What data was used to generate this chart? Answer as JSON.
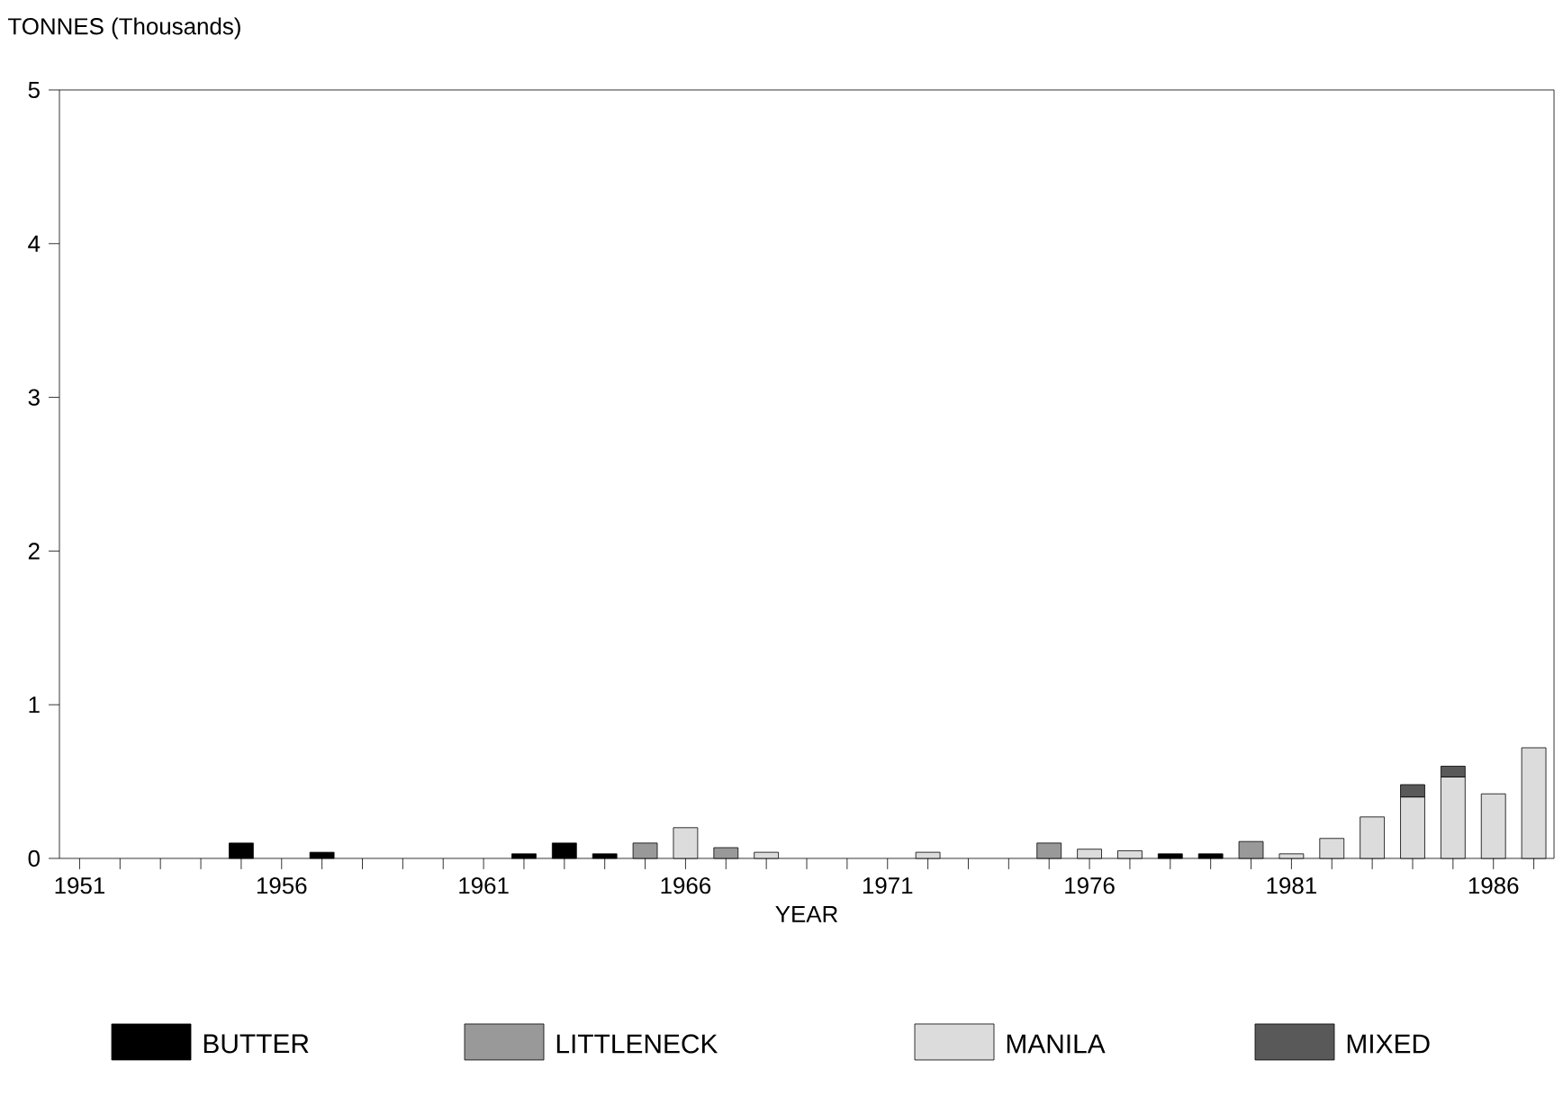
{
  "chart_data": {
    "type": "bar",
    "stacked": true,
    "ylabel": "TONNES (Thousands)",
    "xlabel": "YEAR",
    "x": [
      1955,
      1957,
      1962,
      1963,
      1964,
      1965,
      1966,
      1967,
      1968,
      1972,
      1975,
      1976,
      1977,
      1978,
      1979,
      1980,
      1981,
      1982,
      1983,
      1984,
      1985,
      1986,
      1987
    ],
    "series": [
      {
        "name": "BUTTER",
        "color": "#000000",
        "values": [
          0.1,
          0.04,
          0.03,
          0.1,
          0.03,
          null,
          null,
          null,
          null,
          null,
          null,
          null,
          null,
          0.03,
          0.03,
          null,
          null,
          null,
          null,
          null,
          null,
          null,
          null
        ]
      },
      {
        "name": "LITTLENECK",
        "color": "#999999",
        "values": [
          null,
          null,
          null,
          null,
          null,
          0.1,
          null,
          0.07,
          null,
          null,
          0.1,
          null,
          null,
          null,
          null,
          0.11,
          null,
          null,
          null,
          null,
          null,
          null,
          null
        ]
      },
      {
        "name": "MANILA",
        "color": "#dcdcdc",
        "values": [
          null,
          null,
          null,
          null,
          null,
          null,
          0.2,
          null,
          0.04,
          0.04,
          null,
          0.06,
          0.05,
          null,
          null,
          null,
          0.03,
          0.13,
          0.27,
          0.4,
          0.53,
          0.42,
          0.72
        ]
      },
      {
        "name": "MIXED",
        "color": "#595959",
        "values": [
          null,
          null,
          null,
          null,
          null,
          null,
          null,
          null,
          null,
          null,
          null,
          null,
          null,
          null,
          null,
          null,
          null,
          null,
          null,
          0.08,
          0.07,
          null,
          null
        ]
      }
    ],
    "xlim": [
      1950.5,
      1987.5
    ],
    "ylim": [
      0,
      5
    ],
    "xticks": [
      1951,
      {
        "value": 1952,
        "label": null
      },
      {
        "value": 1953,
        "label": null
      },
      {
        "value": 1954,
        "label": null
      },
      {
        "value": 1955,
        "label": null
      },
      1956,
      {
        "value": 1957,
        "label": null
      },
      {
        "value": 1958,
        "label": null
      },
      {
        "value": 1959,
        "label": null
      },
      {
        "value": 1960,
        "label": null
      },
      1961,
      {
        "value": 1962,
        "label": null
      },
      {
        "value": 1963,
        "label": null
      },
      {
        "value": 1964,
        "label": null
      },
      {
        "value": 1965,
        "label": null
      },
      1966,
      {
        "value": 1967,
        "label": null
      },
      {
        "value": 1968,
        "label": null
      },
      {
        "value": 1969,
        "label": null
      },
      {
        "value": 1970,
        "label": null
      },
      1971,
      {
        "value": 1972,
        "label": null
      },
      {
        "value": 1973,
        "label": null
      },
      {
        "value": 1974,
        "label": null
      },
      {
        "value": 1975,
        "label": null
      },
      1976,
      {
        "value": 1977,
        "label": null
      },
      {
        "value": 1978,
        "label": null
      },
      {
        "value": 1979,
        "label": null
      },
      {
        "value": 1980,
        "label": null
      },
      1981,
      {
        "value": 1982,
        "label": null
      },
      {
        "value": 1983,
        "label": null
      },
      {
        "value": 1984,
        "label": null
      },
      {
        "value": 1985,
        "label": null
      },
      1986,
      {
        "value": 1987,
        "label": null
      }
    ],
    "yticks": [
      0,
      1,
      2,
      3,
      4,
      5
    ],
    "legend": "bottom",
    "grid": false
  }
}
